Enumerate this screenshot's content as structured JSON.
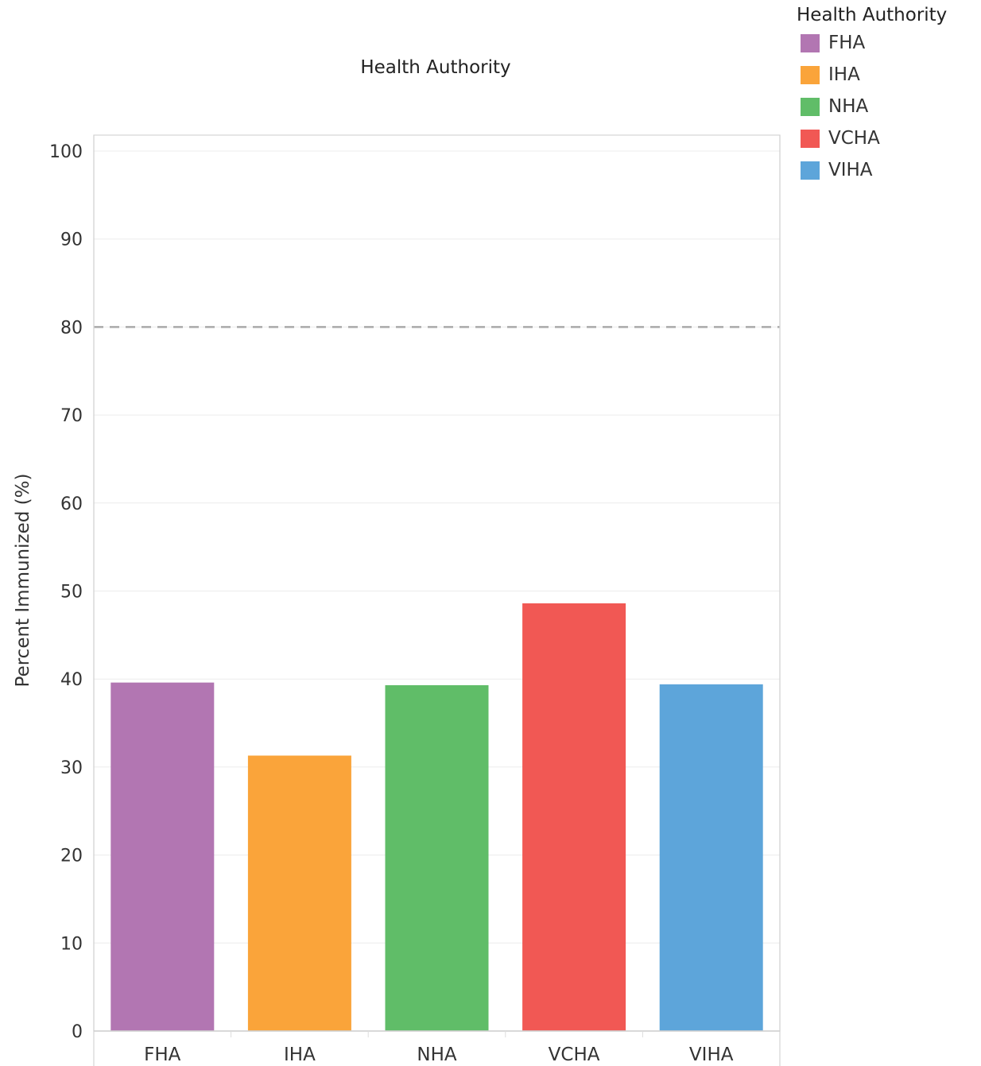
{
  "legend": {
    "title": "Health Authority",
    "items": [
      {
        "label": "FHA",
        "color": "#b276b2"
      },
      {
        "label": "IHA",
        "color": "#faa43a"
      },
      {
        "label": "NHA",
        "color": "#60bd68"
      },
      {
        "label": "VCHA",
        "color": "#f15854"
      },
      {
        "label": "VIHA",
        "color": "#5da5da"
      }
    ]
  },
  "chart_data": {
    "type": "bar",
    "title": "Health Authority",
    "xlabel": "",
    "ylabel": "Percent Immunized (%)",
    "categories": [
      "FHA",
      "IHA",
      "NHA",
      "VCHA",
      "VIHA"
    ],
    "values": [
      39.6,
      31.3,
      39.3,
      48.6,
      39.4
    ],
    "colors": [
      "#b276b2",
      "#faa43a",
      "#60bd68",
      "#f15854",
      "#5da5da"
    ],
    "ylim": [
      0,
      100
    ],
    "yticks": [
      0,
      10,
      20,
      30,
      40,
      50,
      60,
      70,
      80,
      90,
      100
    ],
    "reference_line": {
      "value": 80,
      "style": "dashed",
      "color": "#aaaaaa"
    },
    "grid": true,
    "legend_position": "top-right"
  }
}
